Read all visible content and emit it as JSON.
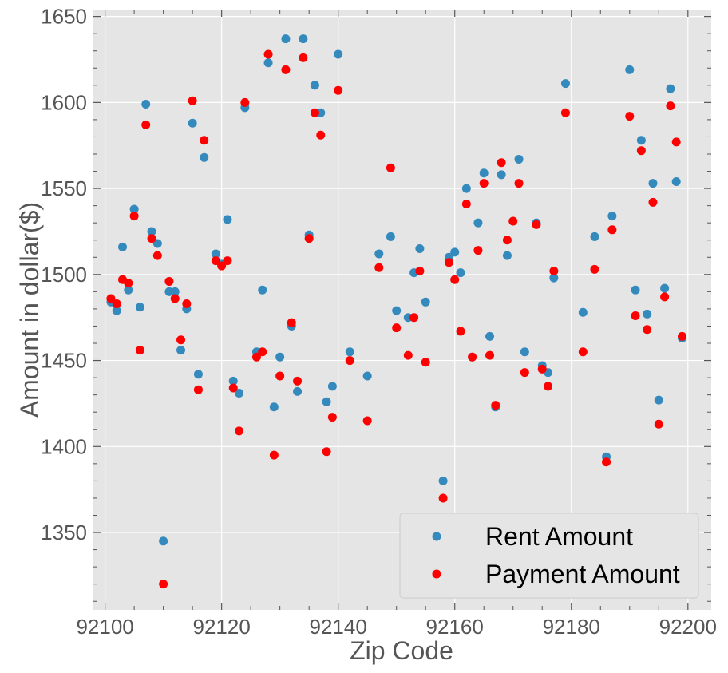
{
  "chart_data": {
    "type": "scatter",
    "title": "",
    "xlabel": "Zip Code",
    "ylabel": "Amount in dollar($)",
    "xlim": [
      92098,
      92204
    ],
    "ylim": [
      1305,
      1654
    ],
    "x_ticks": [
      92100,
      92120,
      92140,
      92160,
      92180,
      92200
    ],
    "y_ticks": [
      1350,
      1400,
      1450,
      1500,
      1550,
      1600,
      1650
    ],
    "grid": true,
    "legend_position": "lower right",
    "series": [
      {
        "name": "Rent Amount",
        "color": "#348abd",
        "points": [
          [
            92101,
            1484
          ],
          [
            92102,
            1479
          ],
          [
            92103,
            1516
          ],
          [
            92104,
            1491
          ],
          [
            92105,
            1538
          ],
          [
            92106,
            1481
          ],
          [
            92107,
            1599
          ],
          [
            92108,
            1525
          ],
          [
            92109,
            1518
          ],
          [
            92110,
            1345
          ],
          [
            92111,
            1490
          ],
          [
            92112,
            1490
          ],
          [
            92113,
            1456
          ],
          [
            92114,
            1480
          ],
          [
            92115,
            1588
          ],
          [
            92116,
            1442
          ],
          [
            92117,
            1568
          ],
          [
            92119,
            1512
          ],
          [
            92120,
            1506
          ],
          [
            92121,
            1532
          ],
          [
            92122,
            1438
          ],
          [
            92123,
            1431
          ],
          [
            92124,
            1597
          ],
          [
            92126,
            1455
          ],
          [
            92127,
            1491
          ],
          [
            92128,
            1623
          ],
          [
            92129,
            1423
          ],
          [
            92130,
            1452
          ],
          [
            92131,
            1637
          ],
          [
            92132,
            1470
          ],
          [
            92133,
            1432
          ],
          [
            92134,
            1637
          ],
          [
            92135,
            1523
          ],
          [
            92136,
            1610
          ],
          [
            92137,
            1594
          ],
          [
            92138,
            1426
          ],
          [
            92139,
            1435
          ],
          [
            92140,
            1628
          ],
          [
            92142,
            1455
          ],
          [
            92145,
            1441
          ],
          [
            92147,
            1512
          ],
          [
            92149,
            1522
          ],
          [
            92150,
            1479
          ],
          [
            92152,
            1475
          ],
          [
            92153,
            1501
          ],
          [
            92154,
            1515
          ],
          [
            92155,
            1484
          ],
          [
            92158,
            1380
          ],
          [
            92159,
            1510
          ],
          [
            92160,
            1513
          ],
          [
            92161,
            1501
          ],
          [
            92162,
            1550
          ],
          [
            92163,
            1452
          ],
          [
            92164,
            1530
          ],
          [
            92165,
            1559
          ],
          [
            92166,
            1464
          ],
          [
            92167,
            1423
          ],
          [
            92168,
            1558
          ],
          [
            92169,
            1511
          ],
          [
            92171,
            1567
          ],
          [
            92172,
            1455
          ],
          [
            92174,
            1530
          ],
          [
            92175,
            1447
          ],
          [
            92176,
            1443
          ],
          [
            92177,
            1498
          ],
          [
            92179,
            1611
          ],
          [
            92182,
            1478
          ],
          [
            92184,
            1522
          ],
          [
            92186,
            1394
          ],
          [
            92187,
            1534
          ],
          [
            92190,
            1619
          ],
          [
            92191,
            1491
          ],
          [
            92192,
            1578
          ],
          [
            92193,
            1477
          ],
          [
            92194,
            1553
          ],
          [
            92195,
            1427
          ],
          [
            92196,
            1492
          ],
          [
            92197,
            1608
          ],
          [
            92198,
            1554
          ],
          [
            92199,
            1463
          ]
        ]
      },
      {
        "name": "Payment Amount",
        "color": "#ff0000",
        "points": [
          [
            92101,
            1486
          ],
          [
            92102,
            1483
          ],
          [
            92103,
            1497
          ],
          [
            92104,
            1495
          ],
          [
            92105,
            1534
          ],
          [
            92106,
            1456
          ],
          [
            92107,
            1587
          ],
          [
            92108,
            1521
          ],
          [
            92109,
            1511
          ],
          [
            92110,
            1320
          ],
          [
            92111,
            1496
          ],
          [
            92112,
            1486
          ],
          [
            92113,
            1462
          ],
          [
            92114,
            1483
          ],
          [
            92115,
            1601
          ],
          [
            92116,
            1433
          ],
          [
            92117,
            1578
          ],
          [
            92119,
            1508
          ],
          [
            92120,
            1505
          ],
          [
            92121,
            1508
          ],
          [
            92122,
            1434
          ],
          [
            92123,
            1409
          ],
          [
            92124,
            1600
          ],
          [
            92126,
            1452
          ],
          [
            92127,
            1455
          ],
          [
            92128,
            1628
          ],
          [
            92129,
            1395
          ],
          [
            92130,
            1441
          ],
          [
            92131,
            1619
          ],
          [
            92132,
            1472
          ],
          [
            92133,
            1438
          ],
          [
            92134,
            1626
          ],
          [
            92135,
            1521
          ],
          [
            92136,
            1594
          ],
          [
            92137,
            1581
          ],
          [
            92138,
            1397
          ],
          [
            92139,
            1417
          ],
          [
            92140,
            1607
          ],
          [
            92142,
            1450
          ],
          [
            92145,
            1415
          ],
          [
            92147,
            1504
          ],
          [
            92149,
            1562
          ],
          [
            92150,
            1469
          ],
          [
            92152,
            1453
          ],
          [
            92153,
            1475
          ],
          [
            92154,
            1502
          ],
          [
            92155,
            1449
          ],
          [
            92158,
            1370
          ],
          [
            92159,
            1507
          ],
          [
            92160,
            1497
          ],
          [
            92161,
            1467
          ],
          [
            92162,
            1541
          ],
          [
            92163,
            1452
          ],
          [
            92164,
            1514
          ],
          [
            92165,
            1553
          ],
          [
            92166,
            1453
          ],
          [
            92167,
            1424
          ],
          [
            92168,
            1565
          ],
          [
            92169,
            1520
          ],
          [
            92170,
            1531
          ],
          [
            92171,
            1553
          ],
          [
            92172,
            1443
          ],
          [
            92174,
            1529
          ],
          [
            92175,
            1445
          ],
          [
            92176,
            1435
          ],
          [
            92177,
            1502
          ],
          [
            92179,
            1594
          ],
          [
            92182,
            1455
          ],
          [
            92184,
            1503
          ],
          [
            92186,
            1391
          ],
          [
            92187,
            1526
          ],
          [
            92190,
            1592
          ],
          [
            92191,
            1476
          ],
          [
            92192,
            1572
          ],
          [
            92193,
            1468
          ],
          [
            92194,
            1542
          ],
          [
            92195,
            1413
          ],
          [
            92196,
            1487
          ],
          [
            92197,
            1598
          ],
          [
            92198,
            1577
          ],
          [
            92199,
            1464
          ]
        ]
      }
    ]
  }
}
